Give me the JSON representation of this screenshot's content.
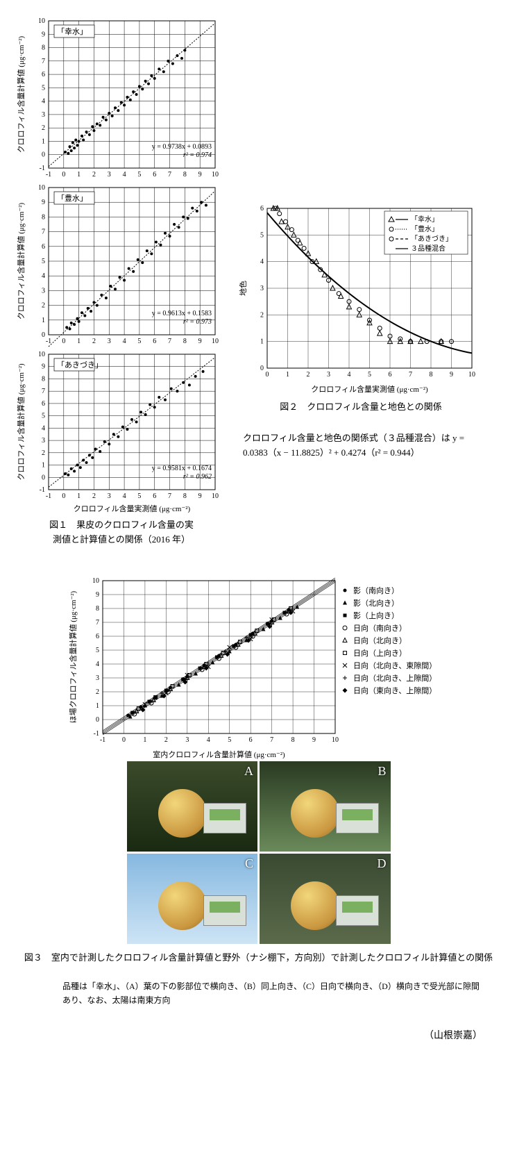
{
  "fig1": {
    "panels": [
      {
        "label": "「幸水」",
        "equation": "y = 0.9738x + 0.0893",
        "r2": "r² = 0.974",
        "ylabel": "クロロフィル含量計算値 (μg·cm⁻²)",
        "xlim": [
          -1,
          10
        ],
        "ylim": [
          -1,
          10
        ],
        "ticks": [
          -1,
          0,
          1,
          2,
          3,
          4,
          5,
          6,
          7,
          8,
          9,
          10
        ],
        "slope": 0.9738,
        "intercept": 0.0893,
        "points": [
          [
            0.1,
            0.2
          ],
          [
            0.3,
            0.1
          ],
          [
            0.4,
            0.6
          ],
          [
            0.5,
            0.3
          ],
          [
            0.6,
            0.9
          ],
          [
            0.7,
            0.5
          ],
          [
            0.8,
            1.1
          ],
          [
            0.9,
            0.7
          ],
          [
            1.0,
            1.0
          ],
          [
            1.2,
            1.4
          ],
          [
            1.3,
            1.1
          ],
          [
            1.5,
            1.7
          ],
          [
            1.7,
            1.5
          ],
          [
            1.9,
            2.1
          ],
          [
            2.0,
            1.8
          ],
          [
            2.2,
            2.3
          ],
          [
            2.4,
            2.2
          ],
          [
            2.6,
            2.8
          ],
          [
            2.8,
            2.6
          ],
          [
            3.0,
            3.1
          ],
          [
            3.2,
            2.9
          ],
          [
            3.4,
            3.5
          ],
          [
            3.6,
            3.3
          ],
          [
            3.8,
            3.9
          ],
          [
            4.0,
            3.7
          ],
          [
            4.2,
            4.3
          ],
          [
            4.4,
            4.1
          ],
          [
            4.6,
            4.7
          ],
          [
            4.8,
            4.5
          ],
          [
            5.0,
            5.1
          ],
          [
            5.2,
            4.9
          ],
          [
            5.4,
            5.5
          ],
          [
            5.6,
            5.3
          ],
          [
            5.8,
            5.9
          ],
          [
            6.0,
            5.7
          ],
          [
            6.3,
            6.4
          ],
          [
            6.6,
            6.2
          ],
          [
            6.9,
            7.0
          ],
          [
            7.2,
            6.8
          ],
          [
            7.5,
            7.4
          ],
          [
            7.8,
            7.2
          ],
          [
            8.0,
            7.8
          ]
        ]
      },
      {
        "label": "「豊水」",
        "equation": "y = 0.9613x + 0.1583",
        "r2": "r² = 0.973",
        "ylabel": "クロロフィル含量計算値 (μg·cm⁻²)",
        "xlim": [
          -1,
          10
        ],
        "ylim": [
          0,
          10
        ],
        "ticks_y": [
          0,
          1,
          2,
          3,
          4,
          5,
          6,
          7,
          8,
          9,
          10
        ],
        "ticks_x": [
          -1,
          0,
          1,
          2,
          3,
          4,
          5,
          6,
          7,
          8,
          9,
          10
        ],
        "slope": 0.9613,
        "intercept": 0.1583,
        "points": [
          [
            0.2,
            0.5
          ],
          [
            0.4,
            0.4
          ],
          [
            0.5,
            0.8
          ],
          [
            0.7,
            0.7
          ],
          [
            0.9,
            1.1
          ],
          [
            1.0,
            0.9
          ],
          [
            1.2,
            1.5
          ],
          [
            1.4,
            1.3
          ],
          [
            1.6,
            1.8
          ],
          [
            1.8,
            1.6
          ],
          [
            2.0,
            2.2
          ],
          [
            2.2,
            2.0
          ],
          [
            2.5,
            2.7
          ],
          [
            2.8,
            2.5
          ],
          [
            3.1,
            3.3
          ],
          [
            3.4,
            3.1
          ],
          [
            3.7,
            3.9
          ],
          [
            4.0,
            3.7
          ],
          [
            4.3,
            4.5
          ],
          [
            4.6,
            4.3
          ],
          [
            4.9,
            5.1
          ],
          [
            5.2,
            4.9
          ],
          [
            5.5,
            5.7
          ],
          [
            5.8,
            5.5
          ],
          [
            6.1,
            6.3
          ],
          [
            6.4,
            6.1
          ],
          [
            6.7,
            6.9
          ],
          [
            7.0,
            6.7
          ],
          [
            7.3,
            7.5
          ],
          [
            7.6,
            7.3
          ],
          [
            7.9,
            8.0
          ],
          [
            8.2,
            7.9
          ],
          [
            8.5,
            8.6
          ],
          [
            8.8,
            8.4
          ],
          [
            9.1,
            9.0
          ],
          [
            9.4,
            8.8
          ]
        ]
      },
      {
        "label": "「あきづき」",
        "equation": "y = 0.9581x + 0.1674",
        "r2": "r² = 0.962",
        "ylabel": "クロロフィル含量計算値 (μg·cm⁻²)",
        "xlabel": "クロロフィル含量実測値 (μg·cm⁻²)",
        "xlim": [
          -1,
          10
        ],
        "ylim": [
          -1,
          10
        ],
        "ticks": [
          -1,
          0,
          1,
          2,
          3,
          4,
          5,
          6,
          7,
          8,
          9,
          10
        ],
        "slope": 0.9581,
        "intercept": 0.1674,
        "points": [
          [
            0.1,
            0.3
          ],
          [
            0.3,
            0.2
          ],
          [
            0.5,
            0.7
          ],
          [
            0.7,
            0.5
          ],
          [
            0.9,
            1.0
          ],
          [
            1.1,
            0.8
          ],
          [
            1.3,
            1.4
          ],
          [
            1.5,
            1.2
          ],
          [
            1.7,
            1.8
          ],
          [
            1.9,
            1.6
          ],
          [
            2.1,
            2.3
          ],
          [
            2.4,
            2.1
          ],
          [
            2.7,
            2.9
          ],
          [
            3.0,
            2.7
          ],
          [
            3.3,
            3.5
          ],
          [
            3.6,
            3.3
          ],
          [
            3.9,
            4.1
          ],
          [
            4.2,
            3.9
          ],
          [
            4.5,
            4.7
          ],
          [
            4.8,
            4.5
          ],
          [
            5.1,
            5.3
          ],
          [
            5.4,
            5.1
          ],
          [
            5.7,
            5.9
          ],
          [
            6.0,
            5.7
          ],
          [
            6.3,
            6.5
          ],
          [
            6.7,
            6.3
          ],
          [
            7.1,
            7.2
          ],
          [
            7.5,
            7.0
          ],
          [
            7.9,
            7.7
          ],
          [
            8.3,
            7.5
          ],
          [
            8.7,
            8.2
          ],
          [
            9.2,
            8.6
          ]
        ]
      }
    ],
    "caption": "図１　果皮のクロロフィル含量の実\n測値と計算値との関係（2016 年）"
  },
  "fig2": {
    "xlabel": "クロロフィル含量実測値 (μg·cm⁻²)",
    "ylabel": "地色",
    "xlim": [
      0,
      10
    ],
    "ylim": [
      0,
      6
    ],
    "xticks": [
      0,
      1,
      2,
      3,
      4,
      5,
      6,
      7,
      8,
      9,
      10
    ],
    "yticks": [
      0,
      1,
      2,
      3,
      4,
      5,
      6
    ],
    "legend": [
      {
        "marker": "triangle",
        "line": "solid",
        "label": "「幸水」"
      },
      {
        "marker": "circle",
        "line": "dot",
        "label": "「豊水」"
      },
      {
        "marker": "circle",
        "line": "dash",
        "label": "「あきづき」"
      },
      {
        "marker": "none",
        "line": "solid",
        "label": "３品種混合"
      }
    ],
    "curve_eq": {
      "a": 0.0383,
      "x0": 11.8825,
      "c": 0.4274
    },
    "series": {
      "triangle": [
        [
          0.3,
          6
        ],
        [
          0.5,
          6
        ],
        [
          0.7,
          5.5
        ],
        [
          1.0,
          5.3
        ],
        [
          1.3,
          5.0
        ],
        [
          1.6,
          4.7
        ],
        [
          2.0,
          4.3
        ],
        [
          2.4,
          4.0
        ],
        [
          2.8,
          3.5
        ],
        [
          3.2,
          3.0
        ],
        [
          3.6,
          2.7
        ],
        [
          4.0,
          2.3
        ],
        [
          4.5,
          2.0
        ],
        [
          5.0,
          1.7
        ],
        [
          5.5,
          1.3
        ],
        [
          6.0,
          1.0
        ],
        [
          6.5,
          1.0
        ],
        [
          7.0,
          1.0
        ],
        [
          7.5,
          1.0
        ],
        [
          8.5,
          1.0
        ]
      ],
      "circle": [
        [
          0.4,
          6
        ],
        [
          0.6,
          5.8
        ],
        [
          0.9,
          5.5
        ],
        [
          1.2,
          5.2
        ],
        [
          1.5,
          4.8
        ],
        [
          1.8,
          4.5
        ],
        [
          2.2,
          4.0
        ],
        [
          2.6,
          3.7
        ],
        [
          3.0,
          3.3
        ],
        [
          3.5,
          2.8
        ],
        [
          4.0,
          2.5
        ],
        [
          4.5,
          2.2
        ],
        [
          5.0,
          1.8
        ],
        [
          5.5,
          1.5
        ],
        [
          6.0,
          1.2
        ],
        [
          6.5,
          1.1
        ],
        [
          7.0,
          1.0
        ],
        [
          7.8,
          1.0
        ],
        [
          8.5,
          1.0
        ],
        [
          9.0,
          1.0
        ]
      ]
    },
    "caption_title": "図２　クロロフィル含量と地色との関係",
    "caption_body": "クロロフィル含量と地色の関係式（３品種混合）は y = 0.0383（x − 11.8825）² + 0.4274（r² = 0.944）"
  },
  "fig3": {
    "xlabel": "室内クロロフィル含量計算値 (μg·cm⁻²)",
    "ylabel": "ほ場クロロフィル含量計算値 (μg·cm⁻²)",
    "xlim": [
      -1,
      10
    ],
    "ylim": [
      -1,
      10
    ],
    "ticks": [
      -1,
      0,
      1,
      2,
      3,
      4,
      5,
      6,
      7,
      8,
      9,
      10
    ],
    "legend": [
      {
        "m": "dot",
        "label": "影（南向き）"
      },
      {
        "m": "triangle-filled",
        "label": "影（北向き）"
      },
      {
        "m": "square-filled",
        "label": "影（上向き）"
      },
      {
        "m": "circle-open",
        "label": "日向（南向き）"
      },
      {
        "m": "triangle-open",
        "label": "日向（北向き）"
      },
      {
        "m": "square-open",
        "label": "日向（上向き）"
      },
      {
        "m": "x",
        "label": "日向（北向き、東隙間）"
      },
      {
        "m": "plus",
        "label": "日向（北向き、上隙間）"
      },
      {
        "m": "diamond-filled",
        "label": "日向（東向き、上隙間）"
      }
    ],
    "points": [
      {
        "m": "dot",
        "pts": [
          [
            0.2,
            0.3
          ],
          [
            0.8,
            0.9
          ],
          [
            1.5,
            1.6
          ],
          [
            2.2,
            2.3
          ],
          [
            3.0,
            3.1
          ],
          [
            3.8,
            3.9
          ],
          [
            4.5,
            4.6
          ],
          [
            5.3,
            5.4
          ],
          [
            6.1,
            6.2
          ],
          [
            7.0,
            7.1
          ],
          [
            7.8,
            7.9
          ]
        ]
      },
      {
        "m": "triangle-filled",
        "pts": [
          [
            0.3,
            0.2
          ],
          [
            1.0,
            1.0
          ],
          [
            1.8,
            1.7
          ],
          [
            2.6,
            2.5
          ],
          [
            3.4,
            3.3
          ],
          [
            4.2,
            4.1
          ],
          [
            5.0,
            4.9
          ],
          [
            5.8,
            5.7
          ],
          [
            6.6,
            6.5
          ],
          [
            7.4,
            7.3
          ],
          [
            8.2,
            8.1
          ]
        ]
      },
      {
        "m": "square-filled",
        "pts": [
          [
            0.4,
            0.5
          ],
          [
            1.2,
            1.3
          ],
          [
            2.0,
            2.1
          ],
          [
            2.8,
            2.9
          ],
          [
            3.6,
            3.7
          ],
          [
            4.4,
            4.5
          ],
          [
            5.2,
            5.3
          ],
          [
            6.0,
            6.1
          ],
          [
            6.8,
            6.9
          ],
          [
            7.6,
            7.7
          ]
        ]
      },
      {
        "m": "circle-open",
        "pts": [
          [
            0.5,
            0.4
          ],
          [
            1.3,
            1.2
          ],
          [
            2.1,
            2.0
          ],
          [
            2.9,
            2.8
          ],
          [
            3.7,
            3.6
          ],
          [
            4.5,
            4.4
          ],
          [
            5.3,
            5.2
          ],
          [
            6.1,
            6.0
          ],
          [
            6.9,
            6.8
          ],
          [
            7.7,
            7.6
          ]
        ]
      },
      {
        "m": "triangle-open",
        "pts": [
          [
            0.6,
            0.6
          ],
          [
            1.4,
            1.4
          ],
          [
            2.2,
            2.2
          ],
          [
            3.0,
            3.0
          ],
          [
            3.8,
            3.8
          ],
          [
            4.6,
            4.6
          ],
          [
            5.4,
            5.4
          ],
          [
            6.2,
            6.2
          ],
          [
            7.0,
            7.0
          ],
          [
            7.8,
            7.8
          ]
        ]
      },
      {
        "m": "square-open",
        "pts": [
          [
            0.7,
            0.8
          ],
          [
            1.5,
            1.6
          ],
          [
            2.3,
            2.4
          ],
          [
            3.1,
            3.2
          ],
          [
            3.9,
            4.0
          ],
          [
            4.7,
            4.8
          ],
          [
            5.5,
            5.6
          ],
          [
            6.3,
            6.4
          ],
          [
            7.1,
            7.2
          ],
          [
            7.9,
            8.0
          ]
        ]
      },
      {
        "m": "x",
        "pts": [
          [
            1.0,
            1.1
          ],
          [
            2.0,
            1.9
          ],
          [
            3.0,
            3.2
          ],
          [
            4.0,
            3.8
          ],
          [
            5.0,
            5.2
          ],
          [
            6.0,
            5.8
          ],
          [
            7.0,
            7.2
          ],
          [
            8.0,
            7.8
          ]
        ]
      },
      {
        "m": "plus",
        "pts": [
          [
            0.8,
            0.9
          ],
          [
            1.8,
            1.9
          ],
          [
            2.8,
            2.9
          ],
          [
            3.8,
            3.9
          ],
          [
            4.8,
            4.9
          ],
          [
            5.8,
            5.9
          ],
          [
            6.8,
            6.9
          ],
          [
            7.8,
            7.9
          ]
        ]
      },
      {
        "m": "diamond-filled",
        "pts": [
          [
            0.9,
            0.7
          ],
          [
            1.9,
            1.7
          ],
          [
            2.9,
            2.7
          ],
          [
            3.9,
            3.7
          ],
          [
            4.9,
            4.7
          ],
          [
            5.9,
            5.7
          ],
          [
            6.9,
            6.7
          ],
          [
            7.9,
            7.7
          ]
        ]
      }
    ],
    "caption_title": "図３　室内で計測したクロロフィル含量計算値と野外（ナシ棚下，方向別）で計測したクロロフィル計算値との関係",
    "caption_body": "品種は「幸水」、（A）葉の下の影部位で横向き、（B）同上向き、（C）日向で横向き、（D）横向きで受光部に隙間あり、なお、太陽は南東方向",
    "photos": [
      {
        "label": "A",
        "bg": "linear-gradient(#3a4a2a,#1a2a12)"
      },
      {
        "label": "B",
        "bg": "linear-gradient(#2a3a22,#6a8a5a)"
      },
      {
        "label": "C",
        "bg": "linear-gradient(#86b8e0,#cde4f5)"
      },
      {
        "label": "D",
        "bg": "linear-gradient(#3a4a32,#5a6a4a)"
      }
    ]
  },
  "author": "（山根崇嘉）",
  "style": {
    "axis_color": "#000000",
    "grid_color": "#000000",
    "point_color": "#000000",
    "bg": "#ffffff",
    "axis_font": 10,
    "label_font": 11
  }
}
